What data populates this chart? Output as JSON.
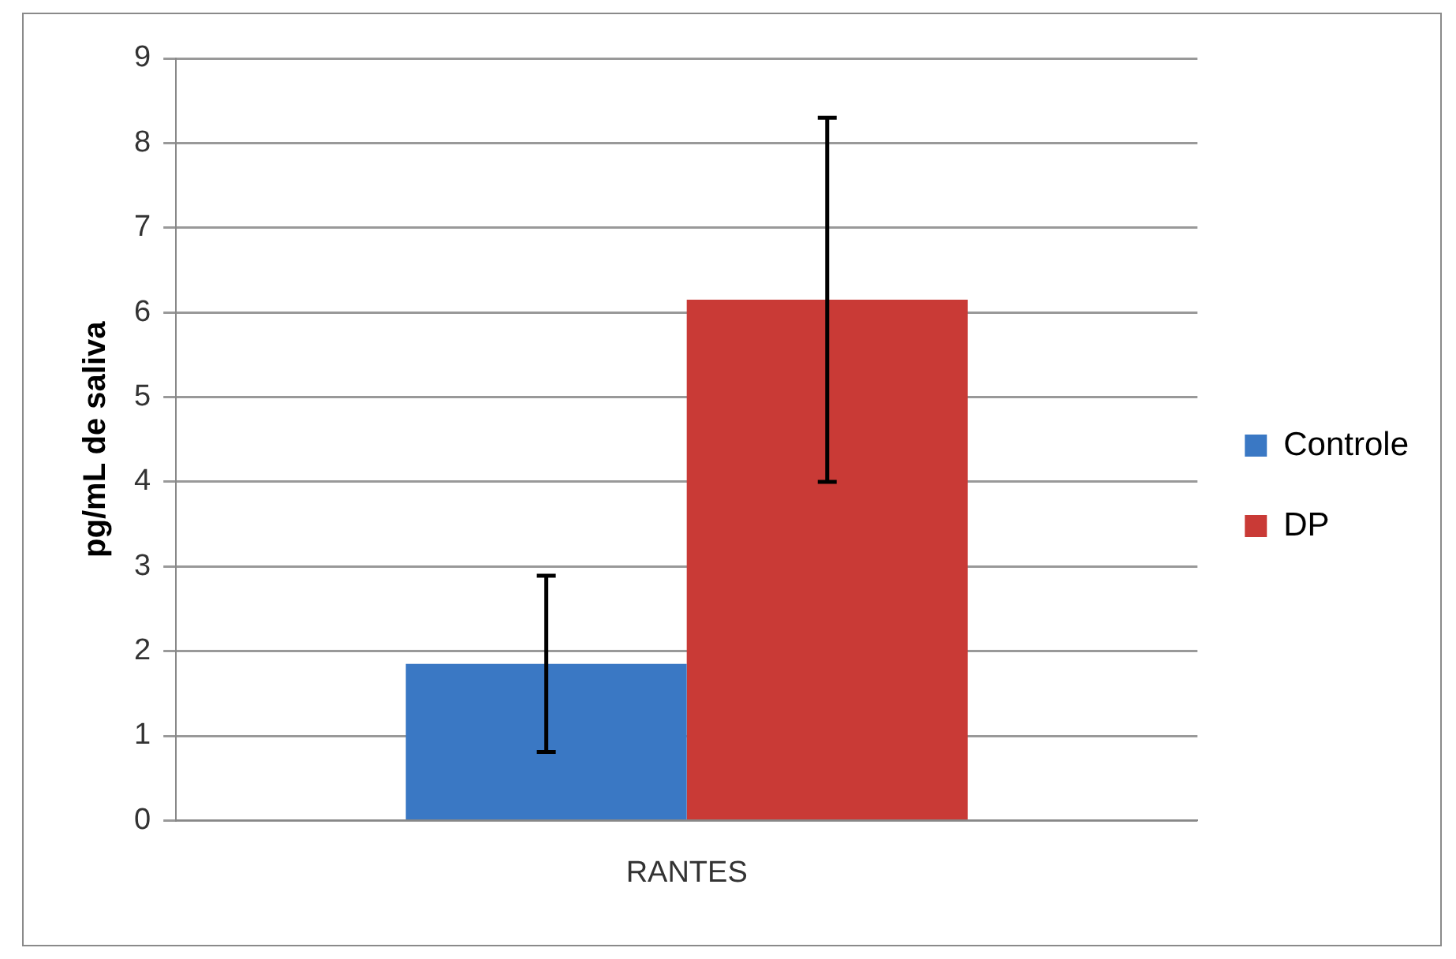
{
  "chart_data": {
    "type": "bar",
    "ylabel": "pg/mL de saliva",
    "categories": [
      "RANTES"
    ],
    "series": [
      {
        "name": "Controle",
        "color": "#3a78c4",
        "values": [
          1.85
        ],
        "errors": [
          1.04
        ]
      },
      {
        "name": "DP",
        "color": "#c93a36",
        "values": [
          6.15
        ],
        "errors": [
          2.15
        ]
      }
    ],
    "ylim": [
      0,
      9
    ],
    "yticks": [
      0,
      1,
      2,
      3,
      4,
      5,
      6,
      7,
      8,
      9
    ],
    "grid": "y",
    "legend": "right"
  }
}
